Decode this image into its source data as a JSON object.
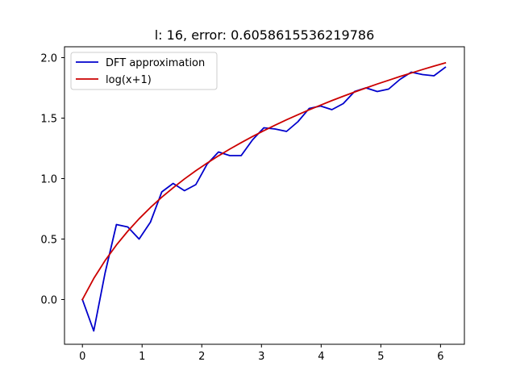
{
  "chart_data": {
    "type": "line",
    "title": "l: 16, error: 0.6058615536219786",
    "xlabel": "",
    "ylabel": "",
    "xlim": [
      -0.3,
      6.4
    ],
    "ylim": [
      -0.37,
      2.09
    ],
    "xticks": [
      0,
      1,
      2,
      3,
      4,
      5,
      6
    ],
    "xtick_labels": [
      "0",
      "1",
      "2",
      "3",
      "4",
      "5",
      "6"
    ],
    "yticks": [
      0.0,
      0.5,
      1.0,
      1.5,
      2.0
    ],
    "ytick_labels": [
      "0.0",
      "0.5",
      "1.0",
      "1.5",
      "2.0"
    ],
    "grid": false,
    "legend_position": "top-left",
    "series": [
      {
        "name": "DFT approximation",
        "color": "#0000cc",
        "x": [
          0.0,
          0.19,
          0.38,
          0.57,
          0.76,
          0.95,
          1.14,
          1.33,
          1.52,
          1.71,
          1.9,
          2.09,
          2.28,
          2.47,
          2.66,
          2.85,
          3.04,
          3.23,
          3.42,
          3.61,
          3.8,
          3.99,
          4.18,
          4.37,
          4.56,
          4.75,
          4.94,
          5.13,
          5.32,
          5.51,
          5.7,
          5.89,
          6.08
        ],
        "y": [
          0.0,
          -0.26,
          0.22,
          0.62,
          0.6,
          0.5,
          0.64,
          0.89,
          0.96,
          0.9,
          0.95,
          1.12,
          1.22,
          1.19,
          1.19,
          1.32,
          1.42,
          1.41,
          1.39,
          1.47,
          1.58,
          1.6,
          1.57,
          1.62,
          1.72,
          1.75,
          1.72,
          1.74,
          1.82,
          1.88,
          1.86,
          1.85,
          1.92
        ]
      },
      {
        "name": "log(x+1)",
        "color": "#cc0000",
        "x": [
          0.0,
          0.19,
          0.38,
          0.57,
          0.76,
          0.95,
          1.14,
          1.33,
          1.52,
          1.71,
          1.9,
          2.09,
          2.28,
          2.47,
          2.66,
          2.85,
          3.04,
          3.23,
          3.42,
          3.61,
          3.8,
          3.99,
          4.18,
          4.37,
          4.56,
          4.75,
          4.94,
          5.13,
          5.32,
          5.51,
          5.7,
          5.89,
          6.08
        ],
        "y": [
          0.0,
          0.174,
          0.322,
          0.451,
          0.565,
          0.668,
          0.761,
          0.846,
          0.924,
          0.997,
          1.065,
          1.128,
          1.188,
          1.244,
          1.297,
          1.348,
          1.396,
          1.442,
          1.486,
          1.528,
          1.569,
          1.607,
          1.645,
          1.681,
          1.716,
          1.749,
          1.782,
          1.813,
          1.844,
          1.873,
          1.902,
          1.93,
          1.957
        ]
      }
    ]
  }
}
